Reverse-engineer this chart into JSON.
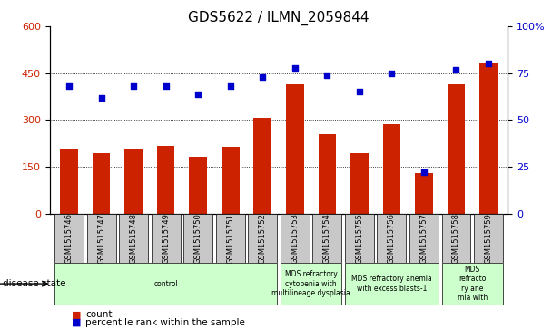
{
  "title": "GDS5622 / ILMN_2059844",
  "samples": [
    "GSM1515746",
    "GSM1515747",
    "GSM1515748",
    "GSM1515749",
    "GSM1515750",
    "GSM1515751",
    "GSM1515752",
    "GSM1515753",
    "GSM1515754",
    "GSM1515755",
    "GSM1515756",
    "GSM1515757",
    "GSM1515758",
    "GSM1515759"
  ],
  "counts": [
    210,
    195,
    210,
    218,
    183,
    215,
    308,
    415,
    255,
    195,
    287,
    130,
    415,
    485
  ],
  "percentiles": [
    68,
    62,
    68,
    68,
    64,
    68,
    73,
    78,
    74,
    65,
    75,
    22,
    77,
    80
  ],
  "ylim_left": [
    0,
    600
  ],
  "ylim_right": [
    0,
    100
  ],
  "yticks_left": [
    0,
    150,
    300,
    450,
    600
  ],
  "yticks_right": [
    0,
    25,
    50,
    75,
    100
  ],
  "bar_color": "#CC2200",
  "dot_color": "#0000CC",
  "grid_color": "#000000",
  "bg_color": "#FFFFFF",
  "disease_groups": [
    {
      "label": "control",
      "start": 0,
      "end": 7,
      "color": "#CCFFCC"
    },
    {
      "label": "MDS refractory\ncytopenia with\nmultilineage dysplasia",
      "start": 7,
      "end": 9,
      "color": "#CCFFCC"
    },
    {
      "label": "MDS refractory anemia\nwith excess blasts-1",
      "start": 9,
      "end": 12,
      "color": "#CCFFCC"
    },
    {
      "label": "MDS\nrefracto\nry ane\nmia with",
      "start": 12,
      "end": 14,
      "color": "#CCFFCC"
    }
  ],
  "disease_state_label": "disease state",
  "legend_count": "count",
  "legend_percentile": "percentile rank within the sample",
  "title_fontsize": 11,
  "tick_fontsize": 8,
  "sample_fontsize": 6,
  "group_fontsize": 5.5,
  "legend_fontsize": 7.5
}
